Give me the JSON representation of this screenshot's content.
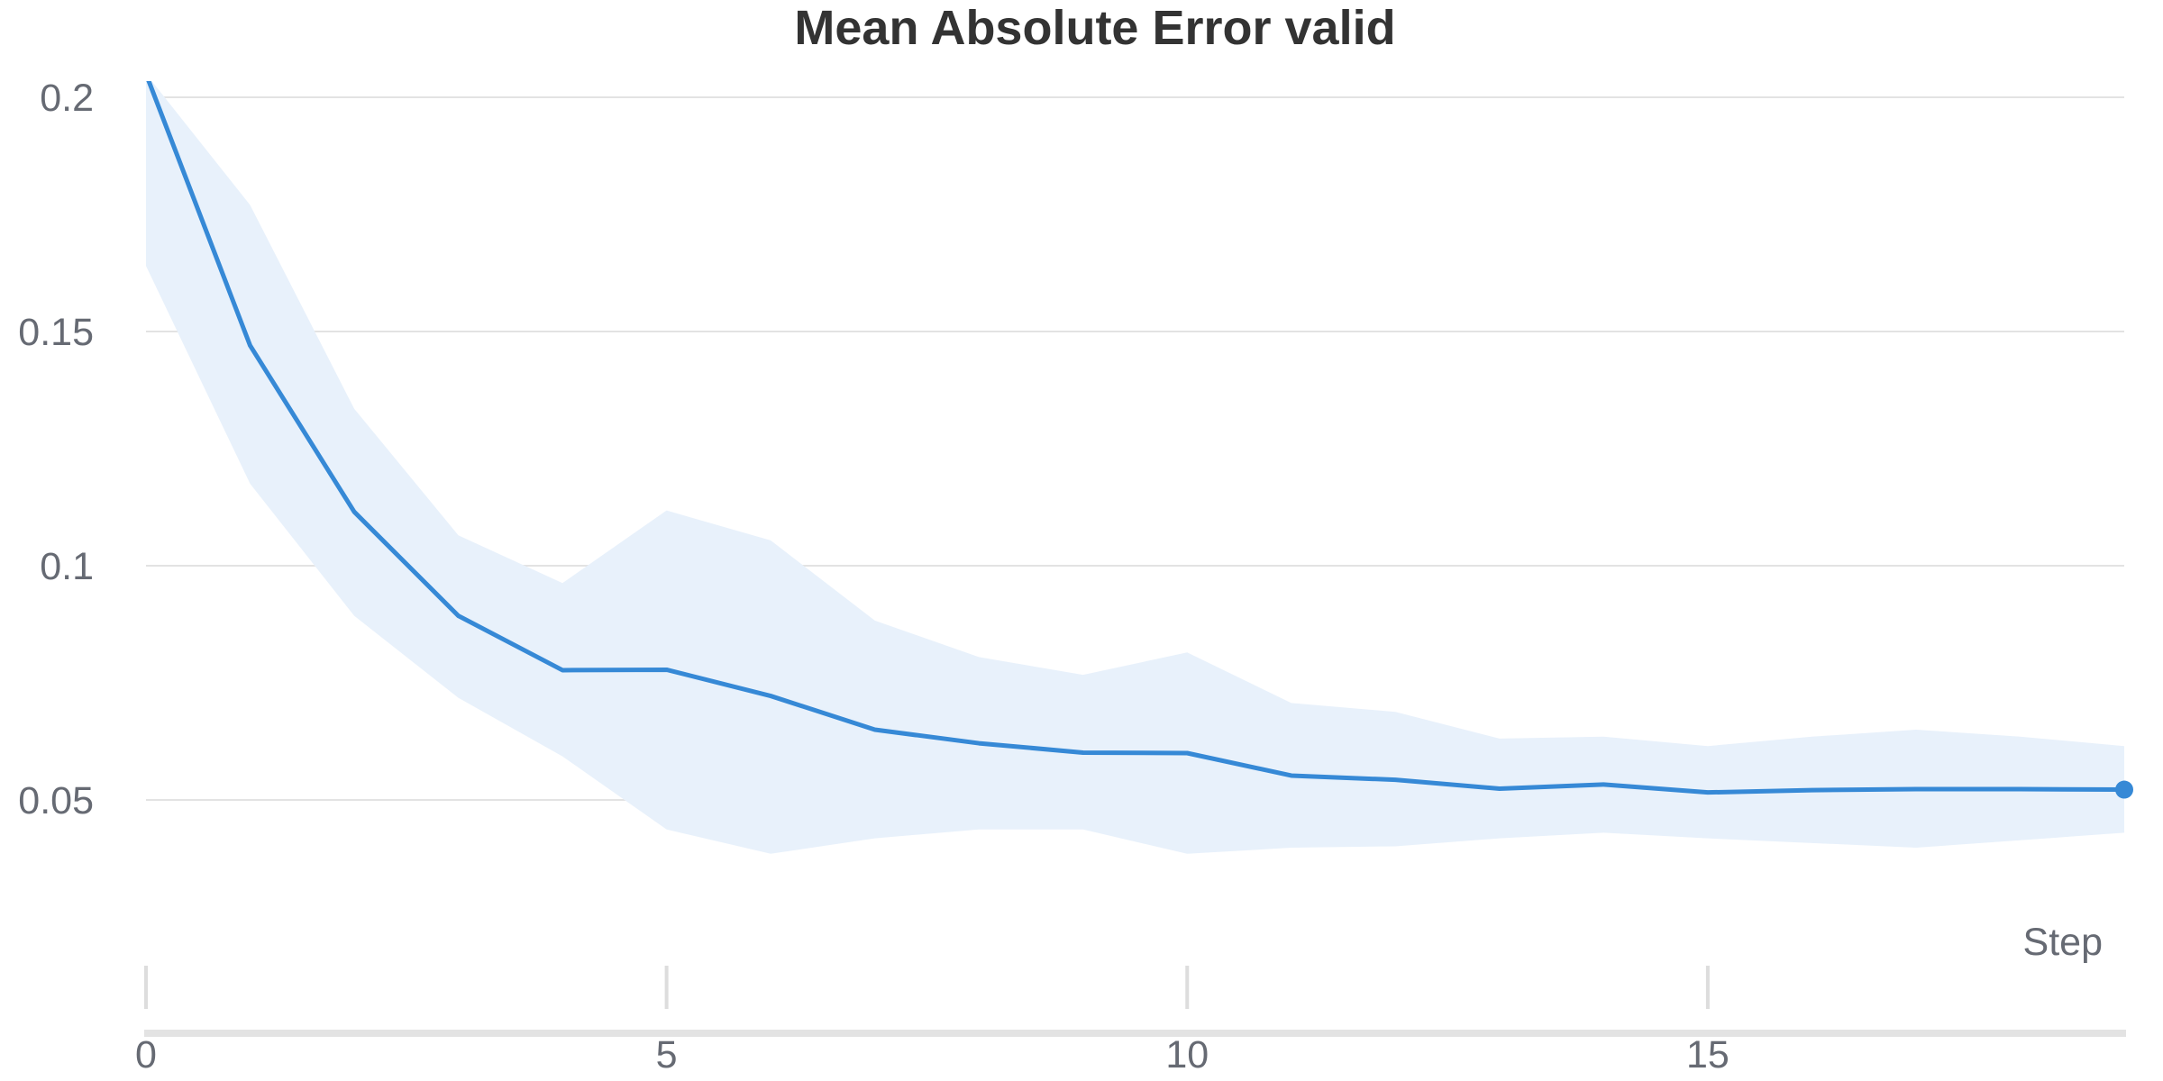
{
  "chart_data": {
    "type": "line",
    "title": "Mean Absolute Error valid",
    "xlabel": "Step",
    "ylabel": "",
    "xlim": [
      0,
      19
    ],
    "ylim": [
      0.02,
      0.205
    ],
    "grid": true,
    "x_ticks": [
      0,
      5,
      10,
      15
    ],
    "x_tick_labels": [
      "0",
      "5",
      "10",
      "15"
    ],
    "y_ticks": [
      0.05,
      0.1,
      0.15,
      0.2
    ],
    "y_tick_labels": [
      "0.05",
      "0.1",
      "0.15",
      "0.2"
    ],
    "x": [
      0,
      1,
      2,
      3,
      4,
      5,
      6,
      7,
      8,
      9,
      10,
      11,
      12,
      13,
      14,
      15,
      16,
      17,
      18,
      19
    ],
    "series": [
      {
        "values": [
          0.205,
          0.147,
          0.1115,
          0.0893,
          0.0777,
          0.0778,
          0.0722,
          0.065,
          0.0621,
          0.0601,
          0.06,
          0.0552,
          0.0543,
          0.0524,
          0.0533,
          0.0516,
          0.0521,
          0.0523,
          0.0523,
          0.0522
        ],
        "upper": [
          0.205,
          0.177,
          0.1335,
          0.1065,
          0.0963,
          0.1118,
          0.1054,
          0.0883,
          0.0805,
          0.0767,
          0.0815,
          0.0707,
          0.0688,
          0.0631,
          0.0635,
          0.0615,
          0.0635,
          0.065,
          0.0635,
          0.0615
        ],
        "lower": [
          0.164,
          0.1175,
          0.0893,
          0.0718,
          0.0593,
          0.0437,
          0.0385,
          0.0418,
          0.0437,
          0.0437,
          0.0385,
          0.0398,
          0.0401,
          0.0418,
          0.043,
          0.0418,
          0.0408,
          0.0398,
          0.0414,
          0.043
        ]
      }
    ],
    "colors": {
      "line": "#3689d6",
      "band": "#e8f1fb",
      "grid": "#e3e3e3",
      "tick_marks": "#dddddd",
      "x_axis_bar": "#e3e3e3"
    }
  }
}
